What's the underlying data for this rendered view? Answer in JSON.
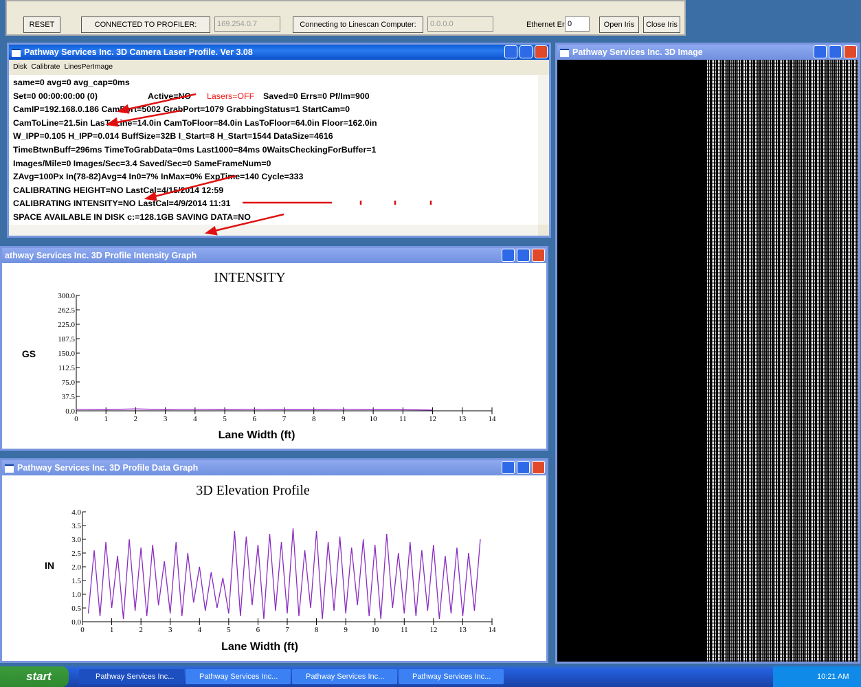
{
  "toolbar": {
    "reset": "RESET",
    "connected_label": "CONNECTED TO PROFILER:",
    "profiler_ip": "169.254.0.7",
    "linescan_label": "Connecting to Linescan Computer:",
    "linescan_ip": "0.0.0.0",
    "ethernet_label": "Ethernet Erros",
    "ethernet_errors": "0",
    "open_iris": "Open Iris",
    "close_iris": "Close Iris"
  },
  "windows": {
    "profile": {
      "title": "Pathway Services Inc. 3D Camera Laser Profile. Ver 3.08",
      "menu": [
        "Disk",
        "Calibrate",
        "LinesPerImage"
      ],
      "lines": [
        [
          "same=0 avg=0 avg_cap=0ms"
        ],
        [
          "Set=0 00:00:00:00 (0)",
          "Active=NO",
          "Lasers=OFF",
          "Saved=0 Errs=0 Pf/Im=900"
        ],
        [
          "CamIP=192.168.0.186 CamPort=5002 GrabPort=1079 GrabbingStatus=1 StartCam=0"
        ],
        [
          "CamToLine=21.5in LasToLine=14.0in CamToFloor=84.0in LasToFloor=64.0in Floor=162.0in"
        ],
        [
          "W_IPP=0.105 H_IPP=0.014 BuffSize=32B I_Start=8 H_Start=1544 DataSize=4616"
        ],
        [
          "TimeBtwnBuff=296ms TimeToGrabData=0ms Last1000=84ms 0WaitsCheckingForBuffer=1"
        ],
        [
          "Images/Mile=0 Images/Sec=3.4 Saved/Sec=0 SameFrameNum=0"
        ],
        [
          "ZAvg=100Px In(78-82)Avg=4 In0=7% InMax=0% ExpTime=140 Cycle=333"
        ],
        [
          "CALIBRATING HEIGHT=NO LastCal=4/15/2014 12:59"
        ],
        [
          "CALIBRATING INTENSITY=NO LastCal=4/9/2014 11:31"
        ],
        [
          "SPACE AVAILABLE IN DISK c:=128.1GB SAVING DATA=NO"
        ]
      ]
    },
    "intensity": {
      "title": "athway Services Inc. 3D Profile Intensity Graph"
    },
    "data_graph": {
      "title": "Pathway Services Inc. 3D Profile Data Graph"
    },
    "image": {
      "title": "Pathway Services Inc. 3D Image"
    }
  },
  "chart_data": [
    {
      "type": "line",
      "title": "INTENSITY",
      "y_label": "GS",
      "x_label": "Lane Width (ft)",
      "xlim": [
        0,
        14
      ],
      "xticks": [
        0,
        1,
        2,
        3,
        4,
        5,
        6,
        7,
        8,
        9,
        10,
        11,
        12,
        13,
        14
      ],
      "ylim": [
        0,
        300
      ],
      "yticks": [
        {
          "value": 0,
          "label": "0.0"
        },
        37.5,
        {
          "value": 75,
          "label": "75.0"
        },
        112.5,
        {
          "value": 150,
          "label": "150.0"
        },
        187.5,
        {
          "value": 225,
          "label": "225.0"
        },
        262.5,
        {
          "value": 300,
          "label": "300.0"
        }
      ],
      "series": [
        {
          "color": "#9b30c8",
          "x": [
            0,
            1,
            2,
            3,
            4,
            5,
            6,
            7,
            8,
            9,
            10,
            11,
            12
          ],
          "values": [
            4,
            3,
            5,
            3,
            4,
            3,
            4,
            3,
            3,
            4,
            3,
            3,
            2
          ]
        }
      ]
    },
    {
      "type": "line",
      "title": "3D Elevation Profile",
      "y_label": "IN",
      "x_label": "Lane Width (ft)",
      "xlim": [
        0,
        14
      ],
      "xticks": [
        0,
        1,
        2,
        3,
        4,
        5,
        6,
        7,
        8,
        9,
        10,
        11,
        12,
        13,
        14
      ],
      "ylim": [
        0,
        4
      ],
      "yticks": [
        {
          "value": 0,
          "label": "0.0"
        },
        0.5,
        {
          "value": 1,
          "label": "1.0"
        },
        1.5,
        {
          "value": 2,
          "label": "2.0"
        },
        2.5,
        {
          "value": 3,
          "label": "3.0"
        },
        3.5,
        {
          "value": 4,
          "label": "4.0"
        }
      ],
      "series": [
        {
          "color": "#8a2cc0",
          "x": [
            0.2,
            0.4,
            0.6,
            0.8,
            1,
            1.2,
            1.4,
            1.6,
            1.8,
            2,
            2.2,
            2.4,
            2.6,
            2.8,
            3,
            3.2,
            3.4,
            3.6,
            3.8,
            4,
            4.2,
            4.4,
            4.6,
            4.8,
            5,
            5.2,
            5.4,
            5.6,
            5.8,
            6,
            6.2,
            6.4,
            6.6,
            6.8,
            7,
            7.2,
            7.4,
            7.6,
            7.8,
            8,
            8.2,
            8.4,
            8.6,
            8.8,
            9,
            9.2,
            9.4,
            9.6,
            9.8,
            10,
            10.2,
            10.4,
            10.6,
            10.8,
            11,
            11.2,
            11.4,
            11.6,
            11.8,
            12,
            12.2,
            12.4,
            12.6,
            12.8,
            13,
            13.2,
            13.4,
            13.6
          ],
          "values": [
            0.3,
            2.6,
            0.2,
            2.9,
            0.5,
            2.4,
            0.1,
            3.0,
            0.4,
            2.7,
            0.2,
            2.8,
            0.6,
            2.2,
            0.3,
            2.9,
            0.2,
            2.5,
            0.7,
            2.0,
            0.4,
            1.8,
            0.5,
            1.6,
            0.3,
            3.3,
            0.2,
            3.1,
            0.6,
            2.8,
            0.1,
            3.2,
            0.4,
            2.9,
            0.3,
            3.4,
            0.2,
            2.6,
            0.5,
            3.3,
            0.1,
            2.9,
            0.4,
            3.1,
            0.3,
            2.7,
            0.6,
            3.0,
            0.2,
            2.8,
            0.1,
            3.2,
            0.5,
            2.5,
            0.3,
            2.9,
            0.2,
            2.6,
            0.4,
            2.8,
            0.1,
            2.4,
            0.3,
            2.7,
            0.2,
            2.5,
            0.4,
            3.0
          ]
        }
      ]
    }
  ],
  "taskbar": {
    "start": "start",
    "tasks": [
      "Pathway Services Inc...",
      "Pathway Services Inc...",
      "Pathway Services Inc...",
      "Pathway Services Inc..."
    ],
    "clock": "10:21 AM"
  }
}
